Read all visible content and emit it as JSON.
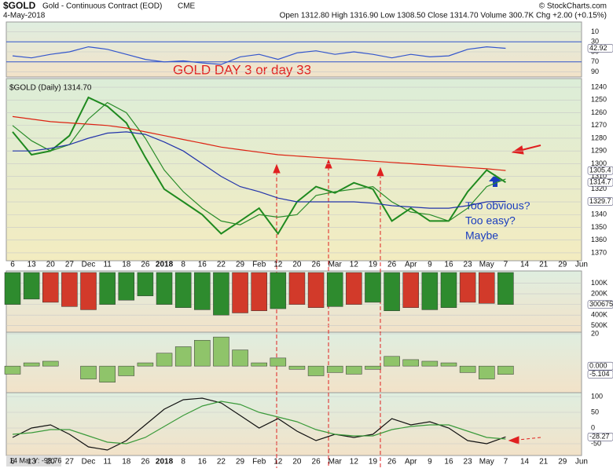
{
  "header": {
    "symbol": "$GOLD",
    "name": "Gold - Continuous Contract (EOD)",
    "exchange": "CME",
    "date": "4-May-2018",
    "quote": "Open 1312.80 High 1316.90 Low 1308.50 Close 1314.70 Volume 300.7K Chg +2.00 (+0.15%)",
    "source": "© StockCharts.com"
  },
  "annotations": {
    "title": "GOLD DAY 3 or day 33",
    "note": [
      "Too obvious?",
      "Too easy?",
      "Maybe"
    ],
    "footer": "14 Mar Y: -99.76"
  },
  "chart_data": [
    {
      "type": "line",
      "ylim": [
        0,
        100
      ],
      "yticks": [
        10,
        30,
        50,
        70,
        90
      ],
      "levels": [
        70,
        30
      ],
      "series": [
        {
          "color": "#3355cc",
          "values": [
            58,
            62,
            55,
            50,
            40,
            45,
            55,
            65,
            70,
            68,
            72,
            75,
            60,
            55,
            65,
            52,
            48,
            55,
            50,
            55,
            62,
            55,
            60,
            58,
            45,
            40,
            43
          ]
        }
      ],
      "tags": [
        {
          "value": 42.92,
          "label": "42.92"
        }
      ]
    },
    {
      "type": "line",
      "legend": "$GOLD (Daily) 1314.70",
      "ylim": [
        1235,
        1375
      ],
      "yticks": [
        1240,
        1250,
        1260,
        1270,
        1280,
        1290,
        1300,
        1310,
        1320,
        1330,
        1340,
        1350,
        1360,
        1370
      ],
      "categories": [
        "6",
        "13",
        "20",
        "27",
        "Dec",
        "11",
        "18",
        "26",
        "2018",
        "8",
        "16",
        "22",
        "29",
        "Feb",
        "12",
        "20",
        "26",
        "Mar",
        "12",
        "19",
        "26",
        "Apr",
        "9",
        "16",
        "23",
        "May",
        "7",
        "14",
        "21",
        "29",
        "Jun"
      ],
      "series": [
        {
          "color": "#1f8a1f",
          "values": [
            1275,
            1293,
            1290,
            1278,
            1248,
            1255,
            1268,
            1295,
            1320,
            1330,
            1340,
            1355,
            1345,
            1335,
            1355,
            1330,
            1318,
            1323,
            1315,
            1320,
            1345,
            1335,
            1345,
            1345,
            1322,
            1305,
            1314.7,
            null,
            null,
            null,
            null
          ]
        },
        {
          "color": "#2a8c2a",
          "values": [
            1270,
            1282,
            1290,
            1285,
            1265,
            1252,
            1260,
            1280,
            1305,
            1322,
            1335,
            1345,
            1348,
            1340,
            1342,
            1340,
            1325,
            1322,
            1320,
            1318,
            1330,
            1338,
            1340,
            1345,
            1335,
            1318,
            1312,
            null,
            null,
            null,
            null
          ]
        },
        {
          "color": "#2233aa",
          "values": [
            1290,
            1290,
            1288,
            1285,
            1280,
            1276,
            1275,
            1277,
            1283,
            1290,
            1300,
            1310,
            1318,
            1322,
            1327,
            1330,
            1330,
            1330,
            1330,
            1331,
            1333,
            1334,
            1335,
            1335,
            1333,
            1330,
            1329.7,
            null,
            null,
            null,
            null
          ]
        },
        {
          "color": "#dd2211",
          "values": [
            1263,
            1265,
            1267,
            1268,
            1269,
            1270,
            1272,
            1275,
            1278,
            1281,
            1284,
            1287,
            1289,
            1291,
            1293,
            1294,
            1295,
            1296,
            1297,
            1298,
            1299,
            1300,
            1301,
            1302,
            1303,
            1304,
            1305.4,
            null,
            null,
            null,
            null
          ]
        }
      ],
      "tags": [
        {
          "value": 1329.7,
          "label": "1329.7"
        },
        {
          "value": 1314.7,
          "label": "1314.7"
        },
        {
          "value": 1305.4,
          "label": "1305.4"
        }
      ]
    },
    {
      "type": "bar",
      "ylim": [
        0,
        550000
      ],
      "up_color": "#2e8b2e",
      "down_color": "#d23a2a",
      "yticks": [
        {
          "value": 100000,
          "label": "100K"
        },
        {
          "value": 200000,
          "label": "200K"
        },
        {
          "value": 300000,
          "label": "300K"
        },
        {
          "value": 400000,
          "label": "400K"
        },
        {
          "value": 500000,
          "label": "500K"
        }
      ],
      "values": [
        300000,
        250000,
        280000,
        320000,
        350000,
        300000,
        260000,
        220000,
        300000,
        330000,
        350000,
        400000,
        380000,
        360000,
        340000,
        300000,
        330000,
        320000,
        300000,
        280000,
        360000,
        330000,
        350000,
        330000,
        280000,
        290000,
        300675
      ],
      "tags": [
        {
          "value": 300675,
          "label": "300675"
        }
      ]
    },
    {
      "type": "bar",
      "ylim": [
        -15,
        20
      ],
      "yticks": [
        20
      ],
      "color": "#8fc46a",
      "values": [
        -5,
        2,
        3,
        0,
        -8,
        -10,
        -6,
        2,
        8,
        12,
        16,
        18,
        10,
        2,
        5,
        -2,
        -6,
        -4,
        -5,
        -2,
        6,
        4,
        3,
        2,
        -4,
        -8,
        -5.104
      ],
      "tags": [
        {
          "value": 0,
          "label": "0.000"
        },
        {
          "value": -5.104,
          "label": "-5.104"
        }
      ]
    },
    {
      "type": "line",
      "ylim": [
        -80,
        100
      ],
      "yticks": [
        100,
        50,
        0,
        -50
      ],
      "series": [
        {
          "color": "#111111",
          "values": [
            -30,
            0,
            10,
            -20,
            -60,
            -70,
            -40,
            10,
            60,
            90,
            95,
            80,
            40,
            0,
            30,
            -10,
            -40,
            -20,
            -30,
            -20,
            30,
            10,
            20,
            0,
            -40,
            -50,
            -28.27
          ]
        },
        {
          "color": "#3a9a3a",
          "values": [
            -20,
            -15,
            -5,
            -5,
            -25,
            -45,
            -50,
            -30,
            5,
            40,
            70,
            85,
            75,
            50,
            35,
            20,
            -5,
            -20,
            -25,
            -25,
            -5,
            5,
            10,
            10,
            -10,
            -30,
            -35
          ]
        }
      ],
      "tags": [
        {
          "value": -28.27,
          "label": "-28.27"
        }
      ]
    }
  ]
}
